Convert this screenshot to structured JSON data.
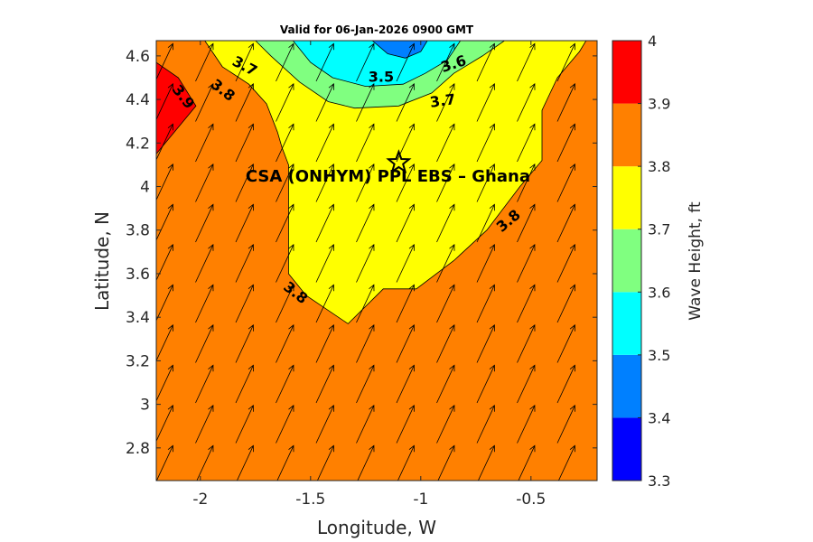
{
  "chart_data": {
    "type": "filled-contour",
    "title": "Valid for 06-Jan-2026 0900 GMT",
    "xlabel": "Longitude, W",
    "ylabel": "Latitude, N",
    "xlim": [
      -2.2,
      -0.2
    ],
    "ylim": [
      2.65,
      4.67
    ],
    "x_ticks": [
      -2,
      -1.5,
      -1,
      -0.5
    ],
    "x_tick_labels": [
      "-2",
      "-1.5",
      "-1",
      "-0.5"
    ],
    "y_ticks": [
      2.8,
      3.0,
      3.2,
      3.4,
      3.6,
      3.8,
      4.0,
      4.2,
      4.4,
      4.6
    ],
    "y_tick_labels": [
      "2.8",
      "3",
      "3.2",
      "3.4",
      "3.6",
      "3.8",
      "4",
      "4.2",
      "4.4",
      "4.6"
    ],
    "colorbar": {
      "label": "Wave Height, ft",
      "range": [
        3.3,
        4.0
      ],
      "tick_labels": [
        "3.3",
        "3.4",
        "3.5",
        "3.6",
        "3.7",
        "3.8",
        "3.9",
        "4"
      ],
      "levels": [
        {
          "from": 3.3,
          "to": 3.4,
          "color": "#0000ff"
        },
        {
          "from": 3.4,
          "to": 3.5,
          "color": "#0080ff"
        },
        {
          "from": 3.5,
          "to": 3.6,
          "color": "#00ffff"
        },
        {
          "from": 3.6,
          "to": 3.7,
          "color": "#80ff80"
        },
        {
          "from": 3.7,
          "to": 3.8,
          "color": "#ffff00"
        },
        {
          "from": 3.8,
          "to": 3.9,
          "color": "#ff8000"
        },
        {
          "from": 3.9,
          "to": 4.0,
          "color": "#ff0000"
        }
      ]
    },
    "background_level": 3.85,
    "regions": [
      {
        "level": 3.75,
        "points": [
          [
            -1.98,
            4.67
          ],
          [
            -1.9,
            4.55
          ],
          [
            -1.78,
            4.47
          ],
          [
            -1.7,
            4.38
          ],
          [
            -1.65,
            4.25
          ],
          [
            -1.63,
            4.18
          ],
          [
            -1.6,
            4.1
          ],
          [
            -1.6,
            3.6
          ],
          [
            -1.52,
            3.5
          ],
          [
            -1.33,
            3.37
          ],
          [
            -1.17,
            3.53
          ],
          [
            -1.02,
            3.53
          ],
          [
            -0.85,
            3.66
          ],
          [
            -0.7,
            3.8
          ],
          [
            -0.55,
            4.0
          ],
          [
            -0.45,
            4.12
          ],
          [
            -0.45,
            4.35
          ],
          [
            -0.38,
            4.5
          ],
          [
            -0.28,
            4.62
          ],
          [
            -0.25,
            4.67
          ]
        ]
      },
      {
        "level": 3.65,
        "points": [
          [
            -1.75,
            4.67
          ],
          [
            -1.68,
            4.6
          ],
          [
            -1.55,
            4.48
          ],
          [
            -1.42,
            4.39
          ],
          [
            -1.3,
            4.36
          ],
          [
            -1.1,
            4.37
          ],
          [
            -0.95,
            4.43
          ],
          [
            -0.85,
            4.52
          ],
          [
            -0.72,
            4.6
          ],
          [
            -0.62,
            4.67
          ]
        ]
      },
      {
        "level": 3.55,
        "points": [
          [
            -1.58,
            4.67
          ],
          [
            -1.5,
            4.57
          ],
          [
            -1.4,
            4.5
          ],
          [
            -1.25,
            4.46
          ],
          [
            -1.08,
            4.47
          ],
          [
            -0.98,
            4.52
          ],
          [
            -0.88,
            4.58
          ],
          [
            -0.82,
            4.67
          ]
        ]
      },
      {
        "level": 3.45,
        "points": [
          [
            -1.22,
            4.67
          ],
          [
            -1.15,
            4.61
          ],
          [
            -1.07,
            4.59
          ],
          [
            -1.0,
            4.62
          ],
          [
            -0.97,
            4.67
          ]
        ]
      },
      {
        "level": 3.95,
        "points": [
          [
            -2.2,
            4.57
          ],
          [
            -2.1,
            4.5
          ],
          [
            -2.02,
            4.37
          ],
          [
            -2.2,
            4.15
          ]
        ]
      }
    ],
    "contour_labels": [
      {
        "text": "3.7",
        "x": -1.8,
        "y": 4.55,
        "angle": 28
      },
      {
        "text": "3.8",
        "x": -1.9,
        "y": 4.44,
        "angle": 38
      },
      {
        "text": "3.9",
        "x": -2.08,
        "y": 4.41,
        "angle": 52
      },
      {
        "text": "3.5",
        "x": -1.18,
        "y": 4.5,
        "angle": 0
      },
      {
        "text": "3.6",
        "x": -0.85,
        "y": 4.56,
        "angle": -18
      },
      {
        "text": "3.7",
        "x": -0.9,
        "y": 4.39,
        "angle": -8
      },
      {
        "text": "3.8",
        "x": -0.6,
        "y": 3.84,
        "angle": -40
      },
      {
        "text": "3.8",
        "x": -1.57,
        "y": 3.51,
        "angle": 38
      }
    ],
    "site": {
      "name": "CSA (ONHYM) PPL EBS  – Ghana",
      "lon": -1.1,
      "lat": 4.11
    },
    "wind_direction_deg": 25
  }
}
